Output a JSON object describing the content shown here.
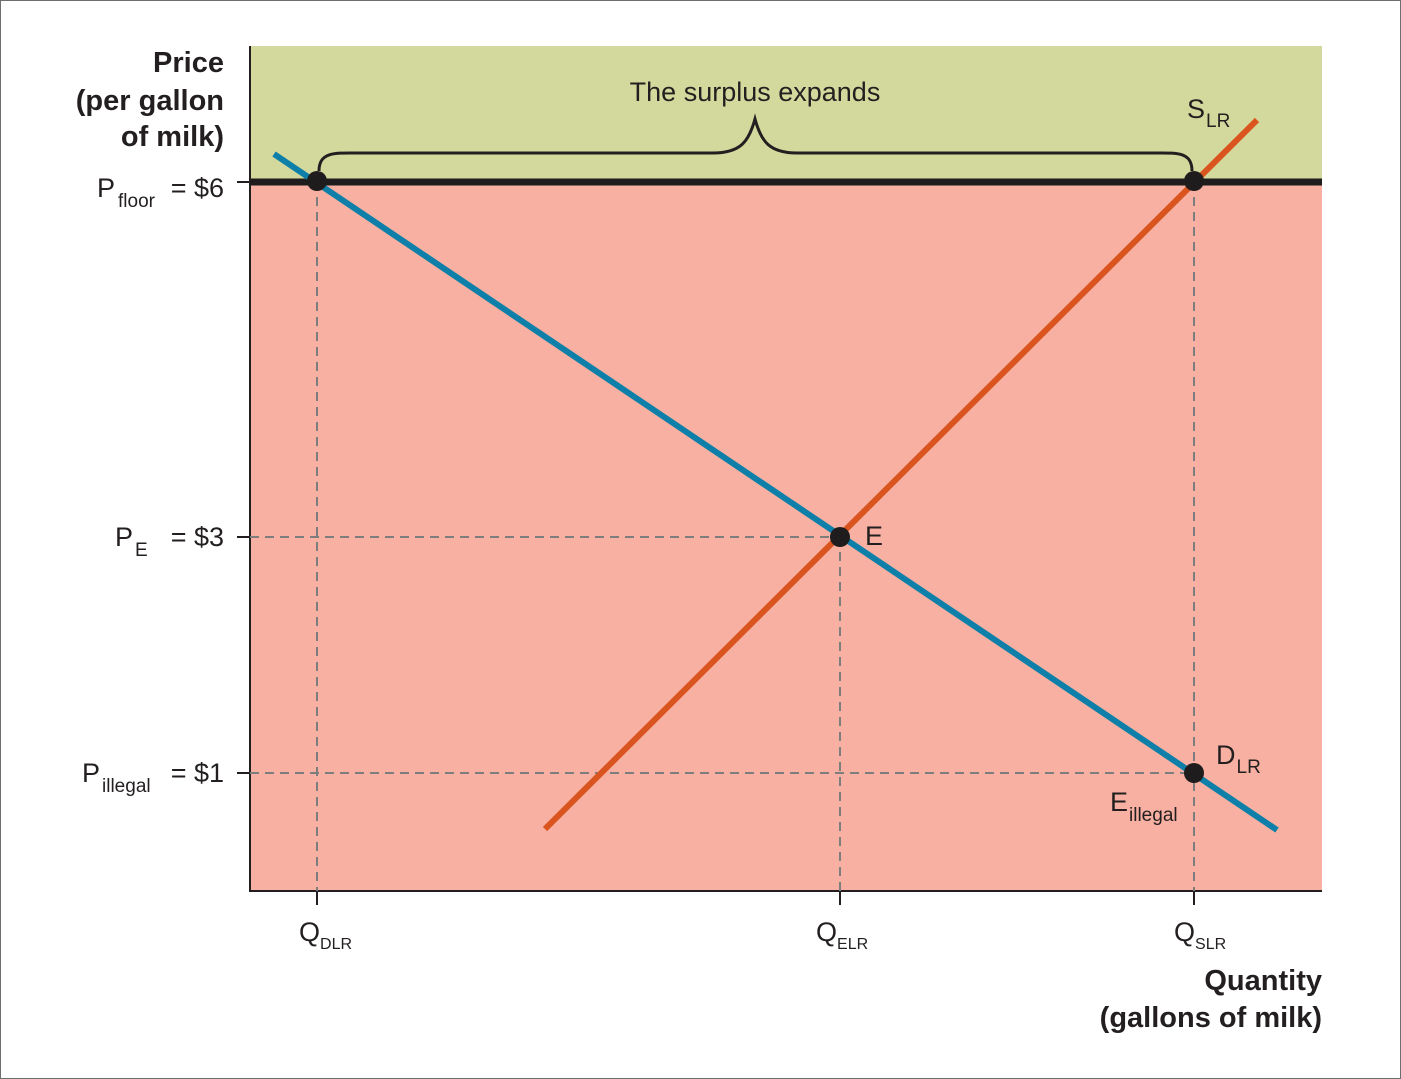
{
  "figure": {
    "y_axis_title": [
      "Price",
      "(per gallon",
      "of milk)"
    ],
    "x_axis_title": [
      "Quantity",
      "(gallons of milk)"
    ],
    "annotation": "The surplus expands",
    "price_labels": [
      {
        "main": "P",
        "sub": "floor",
        "value": "= $6"
      },
      {
        "main": "P",
        "sub": "E",
        "value": "= $3"
      },
      {
        "main": "P",
        "sub": "illegal",
        "value": "= $1"
      }
    ],
    "quantity_labels": [
      {
        "main": "Q",
        "sub": "DLR"
      },
      {
        "main": "Q",
        "sub": "ELR"
      },
      {
        "main": "Q",
        "sub": "SLR"
      }
    ],
    "supply_label": {
      "main": "S",
      "sub": "LR"
    },
    "demand_label": {
      "main": "D",
      "sub": "LR"
    },
    "equilibrium_label": "E",
    "illegal_label": {
      "main": "E",
      "sub": "illegal"
    }
  },
  "colors": {
    "surplus_zone": "#d3d99c",
    "lower_zone": "#f7b0a1",
    "supply": "#d9541e",
    "demand": "#0d7fa8",
    "price_floor": "#1f1c1d",
    "guide": "#7d7d7d"
  }
}
